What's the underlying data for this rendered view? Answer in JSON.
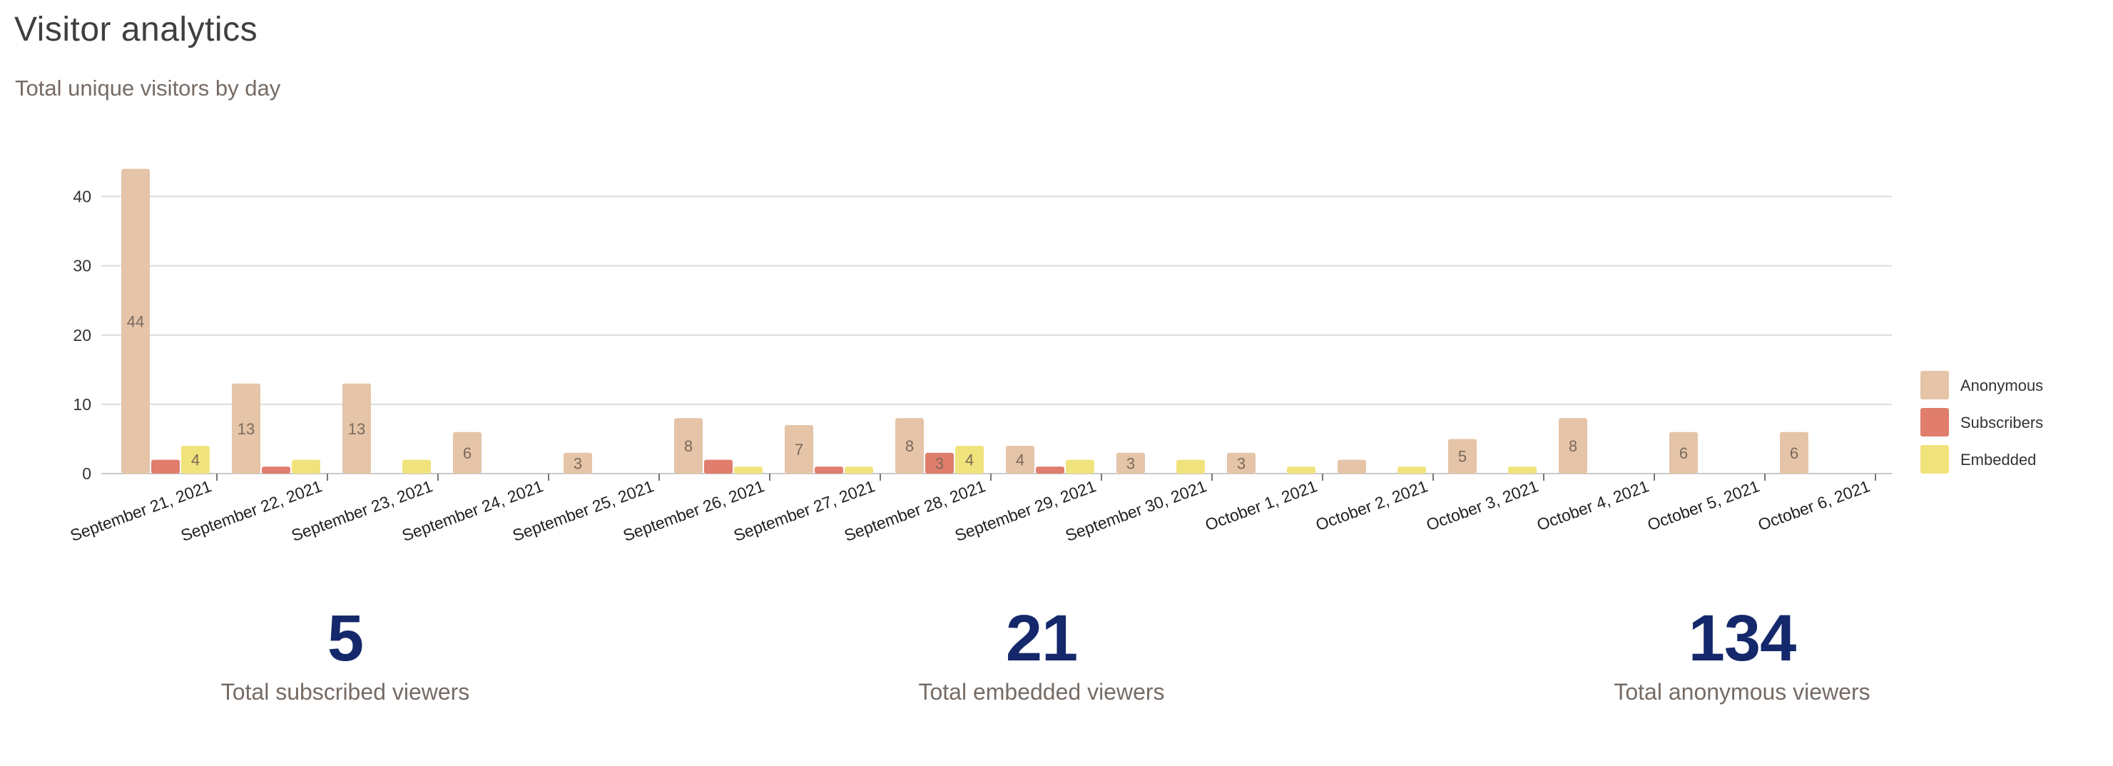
{
  "header": {
    "title": "Visitor analytics",
    "subtitle": "Total unique visitors by day"
  },
  "colors": {
    "anonymous": "#e5c4a8",
    "subscribers": "#e07d6c",
    "embedded": "#f1e37c",
    "stat_value": "#14286b",
    "text_muted": "#766b64"
  },
  "chart_data": {
    "type": "bar",
    "categories": [
      "September 21, 2021",
      "September 22, 2021",
      "September 23, 2021",
      "September 24, 2021",
      "September 25, 2021",
      "September 26, 2021",
      "September 27, 2021",
      "September 28, 2021",
      "September 29, 2021",
      "September 30, 2021",
      "October 1, 2021",
      "October 2, 2021",
      "October 3, 2021",
      "October 4, 2021",
      "October 5, 2021",
      "October 6, 2021"
    ],
    "series": [
      {
        "name": "Anonymous",
        "values": [
          44,
          13,
          13,
          6,
          3,
          8,
          7,
          8,
          4,
          3,
          3,
          2,
          5,
          8,
          6,
          6
        ]
      },
      {
        "name": "Subscribers",
        "values": [
          2,
          1,
          0,
          0,
          0,
          2,
          1,
          3,
          1,
          0,
          0,
          0,
          0,
          0,
          0,
          0
        ]
      },
      {
        "name": "Embedded",
        "values": [
          4,
          2,
          2,
          0,
          0,
          1,
          1,
          4,
          2,
          2,
          1,
          1,
          1,
          0,
          0,
          0
        ]
      }
    ],
    "ylim": [
      0,
      45
    ],
    "yticks": [
      0,
      10,
      20,
      30,
      40
    ],
    "grid": true,
    "legend": "right",
    "xlabel": "",
    "ylabel": ""
  },
  "stats": [
    {
      "value": "5",
      "label": "Total subscribed viewers"
    },
    {
      "value": "21",
      "label": "Total embedded viewers"
    },
    {
      "value": "134",
      "label": "Total anonymous viewers"
    }
  ]
}
